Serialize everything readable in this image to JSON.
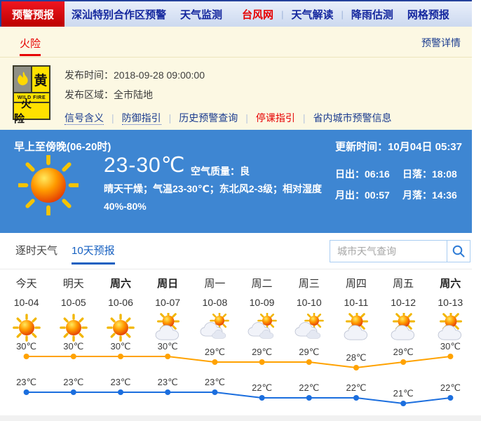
{
  "nav": {
    "items": [
      {
        "id": "warning-forecast",
        "label": "预警预报",
        "active": true
      },
      {
        "id": "shenshan-cooperation-zone-warning",
        "label": "深汕特别合作区预警"
      },
      {
        "id": "weather-monitor",
        "label": "天气监测"
      },
      {
        "id": "typhoon-net",
        "label": "台风网",
        "highlight": true,
        "gap": true
      },
      {
        "separator": true
      },
      {
        "id": "weather-interpretation",
        "label": "天气解读"
      },
      {
        "separator": true
      },
      {
        "id": "rainfall-estimate",
        "label": "降雨估测"
      },
      {
        "id": "grid-forecast",
        "label": "网格预报"
      }
    ]
  },
  "warning": {
    "tab_label": "火险",
    "details_link": "预警详情",
    "sign": {
      "name": "yellow-wildfire-warning",
      "level": "黄",
      "middle": "WILD FIRE",
      "bottom": "火险"
    },
    "publish_time_label": "发布时间：",
    "publish_time": "2018-09-28 09:00:00",
    "publish_area_label": "发布区域：",
    "publish_area": "全市陆地",
    "links": [
      {
        "id": "signal-meaning",
        "label": "信号含义",
        "dotted": true
      },
      {
        "id": "defense-guide",
        "label": "防御指引",
        "dotted": true
      },
      {
        "id": "history-warning-query",
        "label": "历史预警查询"
      },
      {
        "id": "class-suspension-guide",
        "label": "停课指引",
        "highlight": true
      },
      {
        "id": "province-city-warning-info",
        "label": "省内城市预警信息"
      }
    ]
  },
  "banner": {
    "period": "早上至傍晚(06-20时)",
    "update_label": "更新时间：",
    "update_time": "10月04日 05:37",
    "temp_range": "23-30℃",
    "air_quality_label": "空气质量：",
    "air_quality_value": "良",
    "description": "晴天干燥；气温23-30℃；东北风2-3级；相对湿度40%-80%",
    "sun_moon": [
      {
        "id": "sunrise",
        "label": "日出：",
        "value": "06:16"
      },
      {
        "id": "sunset",
        "label": "日落：",
        "value": "18:08"
      },
      {
        "id": "moonrise",
        "label": "月出：",
        "value": "00:57"
      },
      {
        "id": "moonset",
        "label": "月落：",
        "value": "14:36"
      }
    ]
  },
  "tabs": {
    "hourly": "逐时天气",
    "ten_day": "10天预报",
    "active": "ten_day"
  },
  "search": {
    "placeholder": "城市天气查询"
  },
  "chart_data": {
    "type": "line",
    "categories": [
      "今天",
      "明天",
      "周六",
      "周日",
      "周一",
      "周二",
      "周三",
      "周四",
      "周五",
      "周六"
    ],
    "dates": [
      "10-04",
      "10-05",
      "10-06",
      "10-07",
      "10-08",
      "10-09",
      "10-10",
      "10-11",
      "10-12",
      "10-13"
    ],
    "weekend_bold": [
      false,
      false,
      true,
      true,
      false,
      false,
      false,
      false,
      false,
      true
    ],
    "icons": [
      "sunny",
      "sunny",
      "sunny",
      "partly-cloudy",
      "cloudy",
      "cloudy",
      "cloudy",
      "partly-cloudy",
      "partly-cloudy",
      "partly-cloudy"
    ],
    "unit": "℃",
    "series": [
      {
        "name": "high",
        "color": "#ffa200",
        "values": [
          30,
          30,
          30,
          30,
          29,
          29,
          29,
          28,
          29,
          30
        ]
      },
      {
        "name": "low",
        "color": "#1b6ede",
        "values": [
          23,
          23,
          23,
          23,
          23,
          22,
          22,
          22,
          21,
          22
        ]
      }
    ],
    "ylim": [
      21,
      30
    ],
    "grid": false,
    "legend": false
  },
  "colors": {
    "nav_active_red": "#d80000",
    "typhoon_red": "#e60000",
    "warning_bg_yellow": "#fcf8e3",
    "banner_blue": "#3e86d2",
    "active_tab_blue": "#1660c1",
    "high_line": "#ffa200",
    "low_line": "#1b6ede"
  }
}
